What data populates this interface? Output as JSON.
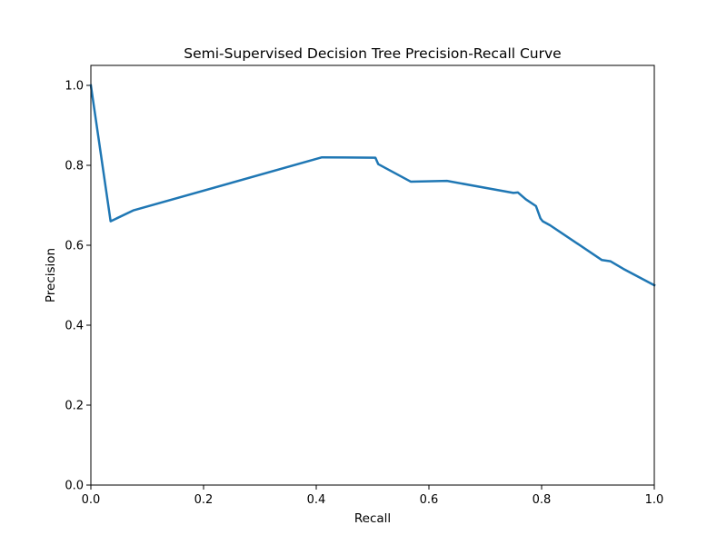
{
  "chart_data": {
    "type": "line",
    "title": "Semi-Supervised Decision Tree Precision-Recall Curve",
    "xlabel": "Recall",
    "ylabel": "Precision",
    "xlim": [
      0.0,
      1.0
    ],
    "ylim": [
      0.0,
      1.05
    ],
    "grid": false,
    "legend": "none",
    "x_ticks": [
      "0.0",
      "0.2",
      "0.4",
      "0.6",
      "0.8",
      "1.0"
    ],
    "y_ticks": [
      "0.0",
      "0.2",
      "0.4",
      "0.6",
      "0.8",
      "1.0"
    ],
    "series": [
      {
        "color": "#1f77b4",
        "x": [
          0.0,
          0.035,
          0.075,
          0.41,
          0.505,
          0.51,
          0.568,
          0.632,
          0.75,
          0.758,
          0.772,
          0.79,
          0.798,
          0.802,
          0.815,
          0.907,
          0.922,
          0.945,
          1.0
        ],
        "y": [
          1.0,
          0.66,
          0.687,
          0.82,
          0.819,
          0.803,
          0.759,
          0.761,
          0.731,
          0.732,
          0.715,
          0.698,
          0.667,
          0.66,
          0.65,
          0.563,
          0.56,
          0.541,
          0.5
        ]
      }
    ]
  }
}
